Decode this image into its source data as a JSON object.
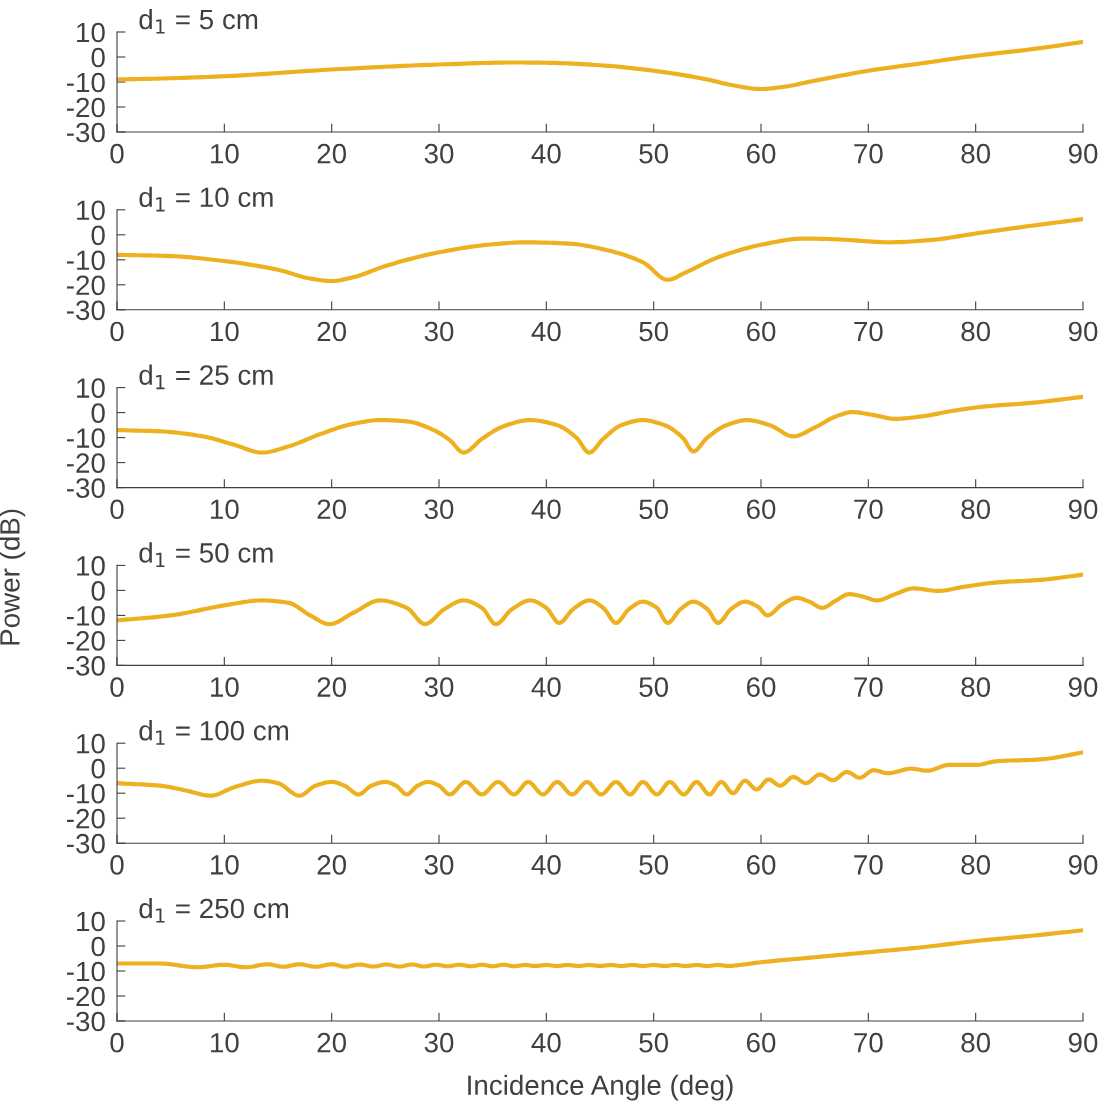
{
  "chart_data": [
    {
      "type": "line",
      "title": "d$_{1}$ = 5 cm",
      "xlim": [
        0,
        90
      ],
      "ylim": [
        -30,
        10
      ],
      "xticks": [
        0,
        10,
        20,
        30,
        40,
        50,
        60,
        70,
        80,
        90
      ],
      "yticks": [
        -30,
        -20,
        -10,
        0,
        10
      ],
      "grid": false,
      "legend": false,
      "series": [
        {
          "color": "#edb120",
          "x": [
            0,
            5,
            10,
            20,
            30,
            37,
            40,
            45,
            50,
            55,
            57,
            60,
            62,
            65,
            70,
            75,
            80,
            85,
            90
          ],
          "values": [
            -9,
            -8.5,
            -7.7,
            -5,
            -3,
            -2.2,
            -2.3,
            -3.3,
            -5.5,
            -9,
            -11,
            -12.8,
            -12,
            -9.5,
            -5.5,
            -2.5,
            0.5,
            3,
            6
          ]
        }
      ]
    },
    {
      "type": "line",
      "title": "d$_{1}$ = 10 cm",
      "xlim": [
        0,
        90
      ],
      "ylim": [
        -30,
        10
      ],
      "xticks": [
        0,
        10,
        20,
        30,
        40,
        50,
        60,
        70,
        80,
        90
      ],
      "yticks": [
        -30,
        -20,
        -10,
        0,
        10
      ],
      "grid": false,
      "legend": false,
      "series": [
        {
          "color": "#edb120",
          "x": [
            0,
            5,
            10,
            15,
            18,
            20,
            22,
            25,
            30,
            35,
            38,
            42,
            46,
            49,
            51.3,
            53,
            56,
            60,
            64,
            67,
            72,
            76,
            80,
            85,
            90
          ],
          "values": [
            -8,
            -8.5,
            -10.5,
            -14,
            -17.5,
            -18.5,
            -17,
            -12.5,
            -7,
            -3.8,
            -3,
            -3.5,
            -6.5,
            -11,
            -18,
            -15,
            -9,
            -4,
            -1.5,
            -1.8,
            -3,
            -2,
            0.5,
            3.5,
            6.3
          ]
        }
      ]
    },
    {
      "type": "line",
      "title": "d$_{1}$ = 25 cm",
      "xlim": [
        0,
        90
      ],
      "ylim": [
        -30,
        10
      ],
      "xticks": [
        0,
        10,
        20,
        30,
        40,
        50,
        60,
        70,
        80,
        90
      ],
      "yticks": [
        -30,
        -20,
        -10,
        0,
        10
      ],
      "grid": false,
      "legend": false,
      "series": [
        {
          "color": "#edb120",
          "x": [
            0,
            4,
            8,
            11,
            13.5,
            16,
            19,
            22,
            24.5,
            27,
            29.5,
            31,
            32.3,
            34,
            36,
            38.5,
            41,
            42.8,
            44,
            45.3,
            47,
            49,
            51,
            52.7,
            53.7,
            55,
            56.8,
            58.7,
            60.8,
            63,
            65,
            67,
            68.5,
            70.5,
            72.5,
            75,
            78,
            81,
            85,
            90
          ],
          "values": [
            -7,
            -7.5,
            -9.5,
            -13,
            -16,
            -13.5,
            -8.5,
            -4.5,
            -3,
            -3.5,
            -7,
            -11,
            -16,
            -10.5,
            -5.5,
            -3,
            -5,
            -10,
            -16,
            -10.5,
            -5,
            -3,
            -5,
            -10,
            -15.5,
            -10,
            -5,
            -3,
            -5,
            -9.5,
            -6,
            -1.5,
            0.2,
            -1,
            -2.5,
            -1.5,
            0.8,
            2.5,
            3.8,
            6.3
          ]
        }
      ]
    },
    {
      "type": "line",
      "title": "d$_{1}$ = 50 cm",
      "ylabel": "Power (dB)",
      "xlim": [
        0,
        90
      ],
      "ylim": [
        -30,
        10
      ],
      "xticks": [
        0,
        10,
        20,
        30,
        40,
        50,
        60,
        70,
        80,
        90
      ],
      "yticks": [
        -30,
        -20,
        -10,
        0,
        10
      ],
      "grid": false,
      "legend": false,
      "series": [
        {
          "color": "#edb120",
          "x": [
            0,
            5,
            10,
            13.5,
            16,
            18,
            19.8,
            22,
            24.5,
            27,
            28.7,
            30.5,
            32.3,
            34,
            35.3,
            36.8,
            38.5,
            40,
            41.2,
            42.5,
            44,
            45.3,
            46.5,
            47.7,
            49,
            50.3,
            51.3,
            52.5,
            53.7,
            55,
            56,
            57.2,
            58.5,
            59.7,
            60.6,
            62,
            63.3,
            64.5,
            65.7,
            67,
            68.2,
            69.5,
            70.8,
            72.5,
            74.2,
            76.5,
            79,
            82,
            86,
            90
          ],
          "values": [
            -12,
            -10,
            -6,
            -4,
            -5,
            -10,
            -13.5,
            -9,
            -4,
            -7,
            -13.5,
            -7.5,
            -4,
            -7,
            -13.5,
            -7.5,
            -4,
            -7,
            -13,
            -7.5,
            -4,
            -7,
            -13,
            -7.5,
            -4.5,
            -7,
            -13,
            -7.5,
            -4.5,
            -7.5,
            -13,
            -7.5,
            -4.5,
            -6.5,
            -10,
            -5.5,
            -3,
            -4.5,
            -7,
            -4,
            -1.5,
            -2.5,
            -4,
            -1.5,
            0.8,
            -0.2,
            1.5,
            3.2,
            4.2,
            6.3
          ]
        }
      ]
    },
    {
      "type": "line",
      "title": "d$_{1}$ = 100 cm",
      "xlim": [
        0,
        90
      ],
      "ylim": [
        -30,
        10
      ],
      "xticks": [
        0,
        10,
        20,
        30,
        40,
        50,
        60,
        70,
        80,
        90
      ],
      "yticks": [
        -30,
        -20,
        -10,
        0,
        10
      ],
      "grid": false,
      "legend": false,
      "series": [
        {
          "color": "#edb120",
          "x": [
            0,
            4,
            6.5,
            8.7,
            11,
            13.5,
            15,
            17,
            18.5,
            20,
            21.2,
            22.5,
            23.7,
            25,
            26,
            27,
            28,
            29,
            30,
            31,
            32.5,
            34,
            35.5,
            37,
            38.3,
            39.7,
            41,
            42.4,
            43.8,
            45.1,
            46.5,
            47.8,
            49,
            50.3,
            51.5,
            52.8,
            54,
            55.2,
            56.3,
            57.4,
            58.5,
            59.6,
            60.7,
            61.8,
            63,
            64.2,
            65.5,
            66.7,
            68,
            69.2,
            70.5,
            71.8,
            74,
            75.5,
            77.5,
            80,
            82,
            86,
            90
          ],
          "values": [
            -6,
            -7,
            -9,
            -11,
            -7.5,
            -5,
            -6,
            -11,
            -7,
            -5.5,
            -7,
            -10.5,
            -7,
            -5.5,
            -7,
            -10.5,
            -7,
            -5.5,
            -7,
            -10.5,
            -5.5,
            -10.5,
            -5.5,
            -10.5,
            -5.5,
            -10.5,
            -5.5,
            -10.5,
            -5.5,
            -10.5,
            -5.5,
            -10.5,
            -5.5,
            -10.5,
            -5.5,
            -10.5,
            -5.5,
            -10.5,
            -5.5,
            -10,
            -5,
            -8.5,
            -4.5,
            -7,
            -3.5,
            -6,
            -2.5,
            -4.8,
            -1.5,
            -3.8,
            -0.8,
            -2,
            -0.2,
            -1,
            1.3,
            1.3,
            2.8,
            3.5,
            6.3
          ]
        }
      ]
    },
    {
      "type": "line",
      "title": "d$_{1}$ = 250 cm",
      "xlabel": "Incidence Angle (deg)",
      "xlim": [
        0,
        90
      ],
      "ylim": [
        -30,
        10
      ],
      "xticks": [
        0,
        10,
        20,
        30,
        40,
        50,
        60,
        70,
        80,
        90
      ],
      "yticks": [
        -30,
        -20,
        -10,
        0,
        10
      ],
      "grid": false,
      "legend": false,
      "series": [
        {
          "color": "#edb120",
          "x": [
            0,
            4,
            7.5,
            10,
            12,
            14,
            15.5,
            17,
            18.5,
            20,
            21.3,
            22.6,
            23.9,
            25.1,
            26.3,
            27.5,
            28.6,
            29.7,
            30.8,
            31.9,
            33,
            34,
            35,
            36,
            37,
            38,
            39,
            40,
            41,
            42,
            43,
            44,
            45,
            46,
            47,
            48,
            49,
            50,
            51,
            52,
            53,
            54,
            55,
            56,
            57,
            58,
            60,
            65,
            70,
            75,
            80,
            85,
            90
          ],
          "values": [
            -7,
            -7,
            -8.5,
            -7.5,
            -8.5,
            -7.3,
            -8.3,
            -7.3,
            -8.3,
            -7.3,
            -8.3,
            -7.4,
            -8.2,
            -7.4,
            -8.2,
            -7.4,
            -8.2,
            -7.5,
            -8.1,
            -7.5,
            -8.1,
            -7.5,
            -8.1,
            -7.5,
            -8.1,
            -7.6,
            -8,
            -7.6,
            -8,
            -7.6,
            -8,
            -7.6,
            -8,
            -7.6,
            -8,
            -7.6,
            -8,
            -7.6,
            -8,
            -7.6,
            -8,
            -7.6,
            -8,
            -7.6,
            -8,
            -7.6,
            -6.5,
            -4.5,
            -2.5,
            -0.5,
            2,
            4,
            6.3
          ]
        }
      ]
    }
  ]
}
